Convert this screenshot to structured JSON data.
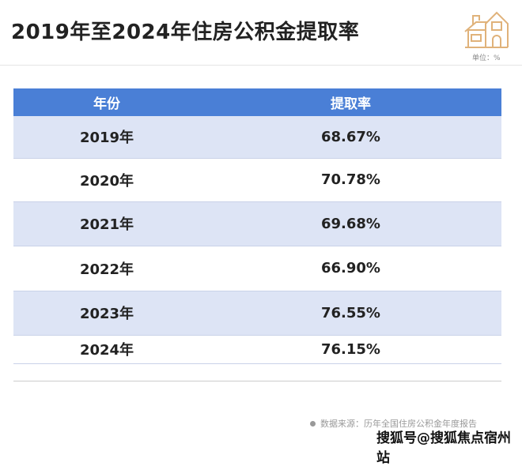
{
  "title": "2019年至2024年住房公积金提取率",
  "unit": "单位：%",
  "icon": "house-icon",
  "table": {
    "headers": [
      "年份",
      "提取率"
    ],
    "rows": [
      {
        "year": "2019年",
        "rate": "68.67%"
      },
      {
        "year": "2020年",
        "rate": "70.78%"
      },
      {
        "year": "2021年",
        "rate": "69.68%"
      },
      {
        "year": "2022年",
        "rate": "66.90%"
      },
      {
        "year": "2023年",
        "rate": "76.55%"
      },
      {
        "year": "2024年",
        "rate": "76.15%"
      }
    ]
  },
  "source": "数据来源：历年全国住房公积金年度报告",
  "watermark": "搜狐号@搜狐焦点宿州站",
  "colors": {
    "header": "#4a7fd6",
    "stripe": "#dde4f5",
    "icon": "#e0b27a"
  }
}
